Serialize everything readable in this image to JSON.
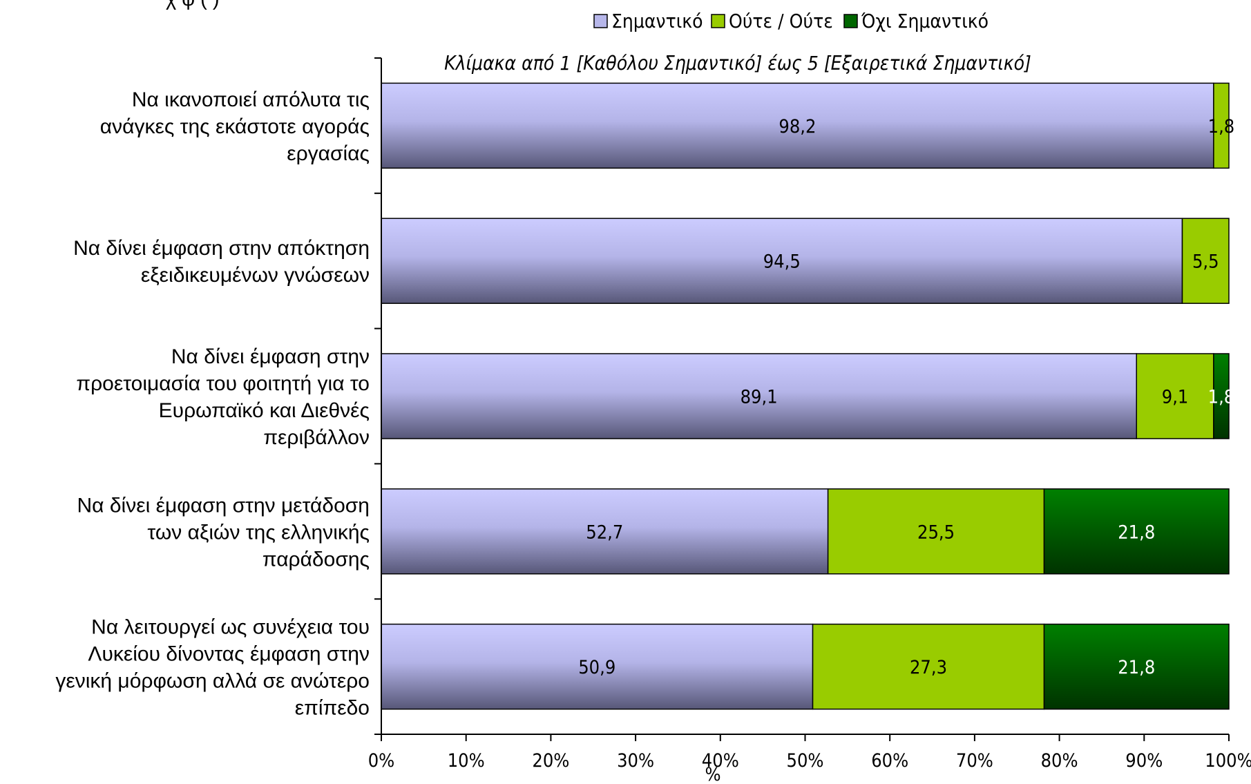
{
  "chart_data": {
    "type": "bar",
    "orientation": "horizontal",
    "stacked": true,
    "normalized": true,
    "title_fragment": "χ φ     (     )",
    "subtitle": "Κλίμακα από 1 [Καθόλου Σημαντικό] έως 5 [Εξαιρετικά Σημαντικό]",
    "xlabel": "%",
    "ylabel": "",
    "xlim": [
      0,
      100
    ],
    "x_ticks": [
      "0%",
      "10%",
      "20%",
      "30%",
      "40%",
      "50%",
      "60%",
      "70%",
      "80%",
      "90%",
      "100%"
    ],
    "legend_position": "top",
    "categories": [
      [
        "Να ικανοποιεί απόλυτα τις",
        "ανάγκες της εκάστοτε αγοράς",
        "εργασίας"
      ],
      [
        "Να δίνει έμφαση στην απόκτηση",
        "εξειδικευμένων γνώσεων"
      ],
      [
        "Να δίνει έμφαση στην",
        "προετοιμασία του φοιτητή για το",
        "Ευρωπαϊκό και Διεθνές",
        "περιβάλλον"
      ],
      [
        "Να δίνει έμφαση στην μετάδοση",
        "των αξιών της ελληνικής",
        "παράδοσης"
      ],
      [
        "Να λειτουργεί ως συνέχεια του",
        "Λυκείου δίνοντας έμφαση στην",
        "γενική μόρφωση αλλά σε ανώτερο",
        "επίπεδο"
      ]
    ],
    "series": [
      {
        "name": "Σημαντικό",
        "color": "#9f9fd8",
        "values": [
          98.2,
          94.5,
          89.1,
          52.7,
          50.9
        ],
        "labels": [
          "98,2",
          "94,5",
          "89,1",
          "52,7",
          "50,9"
        ]
      },
      {
        "name": "Ούτε / Ούτε",
        "color": "#99cc00",
        "values": [
          1.8,
          5.5,
          9.1,
          25.5,
          27.3
        ],
        "labels": [
          "1,8",
          "5,5",
          "9,1",
          "25,5",
          "27,3"
        ]
      },
      {
        "name": "Όχι Σημαντικό",
        "color": "#006600",
        "values": [
          0,
          0,
          1.8,
          21.8,
          21.8
        ],
        "labels": [
          "0",
          "0",
          "1,8",
          "21,8",
          "21,8"
        ]
      }
    ]
  }
}
